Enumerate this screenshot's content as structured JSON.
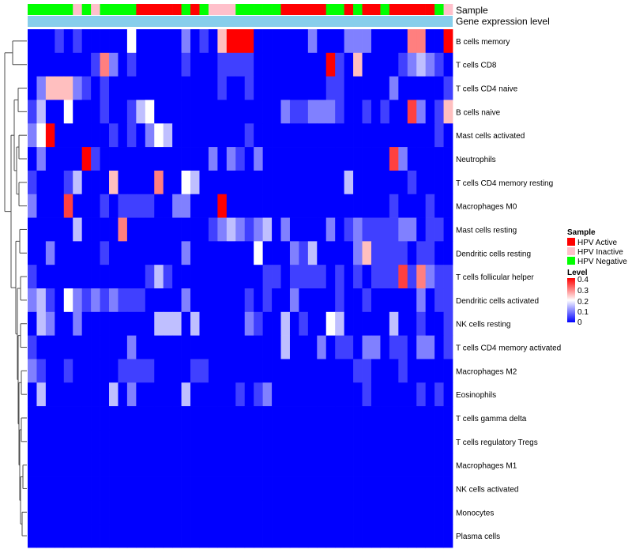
{
  "chart_data": {
    "type": "heatmap",
    "title": "",
    "annotation_row_label": "Sample",
    "top_bar_label": "Gene expression level",
    "row_labels": [
      "B cells memory",
      "T cells CD8",
      "T cells CD4 naive",
      "B cells naive",
      "Mast cells activated",
      "Neutrophils",
      "T cells CD4 memory resting",
      "Macrophages M0",
      "Mast cells resting",
      "Dendritic cells resting",
      "T cells follicular helper",
      "Dendritic cells activated",
      "NK cells resting",
      "T cells CD4 memory activated",
      "Macrophages M2",
      "Eosinophils",
      "T cells gamma delta",
      "T cells regulatory  Tregs",
      "Macrophages M1",
      "NK cells activated",
      "Monocytes",
      "Plasma cells"
    ],
    "column_sample_groups": "NNNNNININNNNAAAAANANIIINNNNNAAAAANNANAANAAAAANI",
    "group_codes": {
      "A": "HPV Active",
      "I": "HPV Inactive",
      "N": "HPV Negative"
    },
    "legend": {
      "sample_title": "Sample",
      "sample_items": [
        {
          "label": "HPV Active",
          "color": "#ff0000"
        },
        {
          "label": "HPV Inactive",
          "color": "#ffc0cb"
        },
        {
          "label": "HPV Negative",
          "color": "#00ff00"
        }
      ],
      "level_title": "Level",
      "level_ticks": [
        "0.4",
        "0.3",
        "0.2",
        "0.1",
        "0"
      ]
    },
    "color_scale": {
      "low": "#0000ff",
      "mid": "#ffffff",
      "high": "#ff0000",
      "min": 0,
      "mid_value": 0.2,
      "max": 0.4
    },
    "top_bar_color": "#87ceeb",
    "cell_codes_note": "Each character is one cell value: 0=0.00,1=0.05,2=0.10,3=0.15,4=0.20,5=0.25,6=0.30,7=0.35,8=0.40",
    "cell_codes": [
      "00010100000400000201058880000002000222000066008",
      "00000001620100000100011110000000081050000123210",
      "02555210100000000000010010000000011000002000001",
      "13004000100134000000000000002112221001010072015",
      "24800000010102430000000010000000000000000000010",
      "02000081000000000000202102000000000000007200000",
      "10001300050000600430000000000000000300000010000",
      "20007000101111002200080000000000000000001000100",
      "00000300006000000000123212302000020121111220110",
      "00200000100000000200000004000213000025111101100",
      "10000000000001310000000000110111101010111716211",
      "23104212121110000200000010100200001001000002011",
      "03200200000000333030000021003010043000003001001",
      "10000000000200000000000000003000201102201102201",
      "21001000001111000011000000000000000011000100000",
      "03000000030200000300000101200000000001000001010",
      "00000000000000000000000000000000000000000000000",
      "00000000000000000000000000000000000000000000000",
      "00000000000000000000000000000000000000000000000",
      "00000000000000000000000000000000000000000000000",
      "00000000000000000000000000000000000000000000000",
      "00000000000000000000000000000000000000000000000"
    ]
  }
}
